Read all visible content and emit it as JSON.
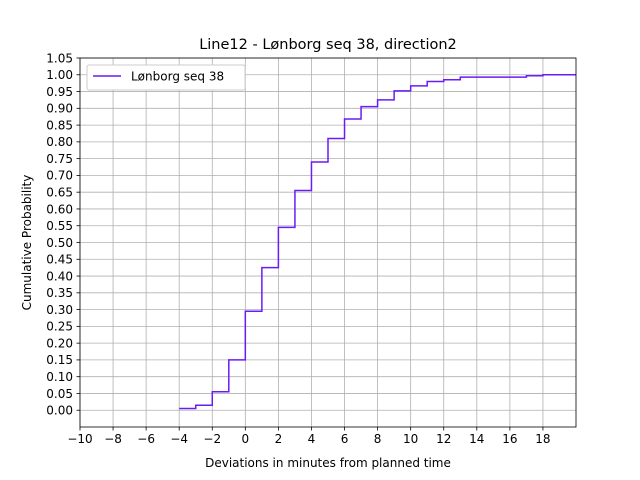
{
  "chart_data": {
    "type": "line",
    "step": "post",
    "title": "Line12 - Lønborg seq 38, direction2",
    "xlabel": "Deviations in minutes from planned time",
    "ylabel": "Cumulative Probability",
    "xlim": [
      -10,
      20
    ],
    "ylim": [
      -0.05,
      1.05
    ],
    "xticks": [
      -10,
      -8,
      -6,
      -4,
      -2,
      0,
      2,
      4,
      6,
      8,
      10,
      12,
      14,
      16,
      18
    ],
    "xtick_labels": [
      "−10",
      "−8",
      "−6",
      "−4",
      "−2",
      "0",
      "2",
      "4",
      "6",
      "8",
      "10",
      "12",
      "14",
      "16",
      "18"
    ],
    "yticks": [
      0,
      0.05,
      0.1,
      0.15,
      0.2,
      0.25,
      0.3,
      0.35,
      0.4,
      0.45,
      0.5,
      0.55,
      0.6,
      0.65,
      0.7,
      0.75,
      0.8,
      0.85,
      0.9,
      0.95,
      1.0,
      1.05
    ],
    "ytick_labels": [
      "0.00",
      "0.05",
      "0.10",
      "0.15",
      "0.20",
      "0.25",
      "0.30",
      "0.35",
      "0.40",
      "0.45",
      "0.50",
      "0.55",
      "0.60",
      "0.65",
      "0.70",
      "0.75",
      "0.80",
      "0.85",
      "0.90",
      "0.95",
      "1.00",
      "1.05"
    ],
    "grid": true,
    "legend_position": "top-left",
    "series": [
      {
        "name": "Lønborg seq 38",
        "color": "#6a1cf6",
        "x": [
          -4,
          -3,
          -2,
          -1,
          0,
          1,
          2,
          3,
          4,
          5,
          6,
          7,
          8,
          9,
          10,
          11,
          12,
          13,
          14,
          15,
          16,
          17,
          18,
          20
        ],
        "y": [
          0.005,
          0.015,
          0.055,
          0.15,
          0.295,
          0.425,
          0.545,
          0.655,
          0.74,
          0.81,
          0.868,
          0.905,
          0.925,
          0.952,
          0.967,
          0.98,
          0.985,
          0.993,
          0.993,
          0.993,
          0.993,
          0.997,
          1.0,
          1.0
        ]
      }
    ]
  }
}
